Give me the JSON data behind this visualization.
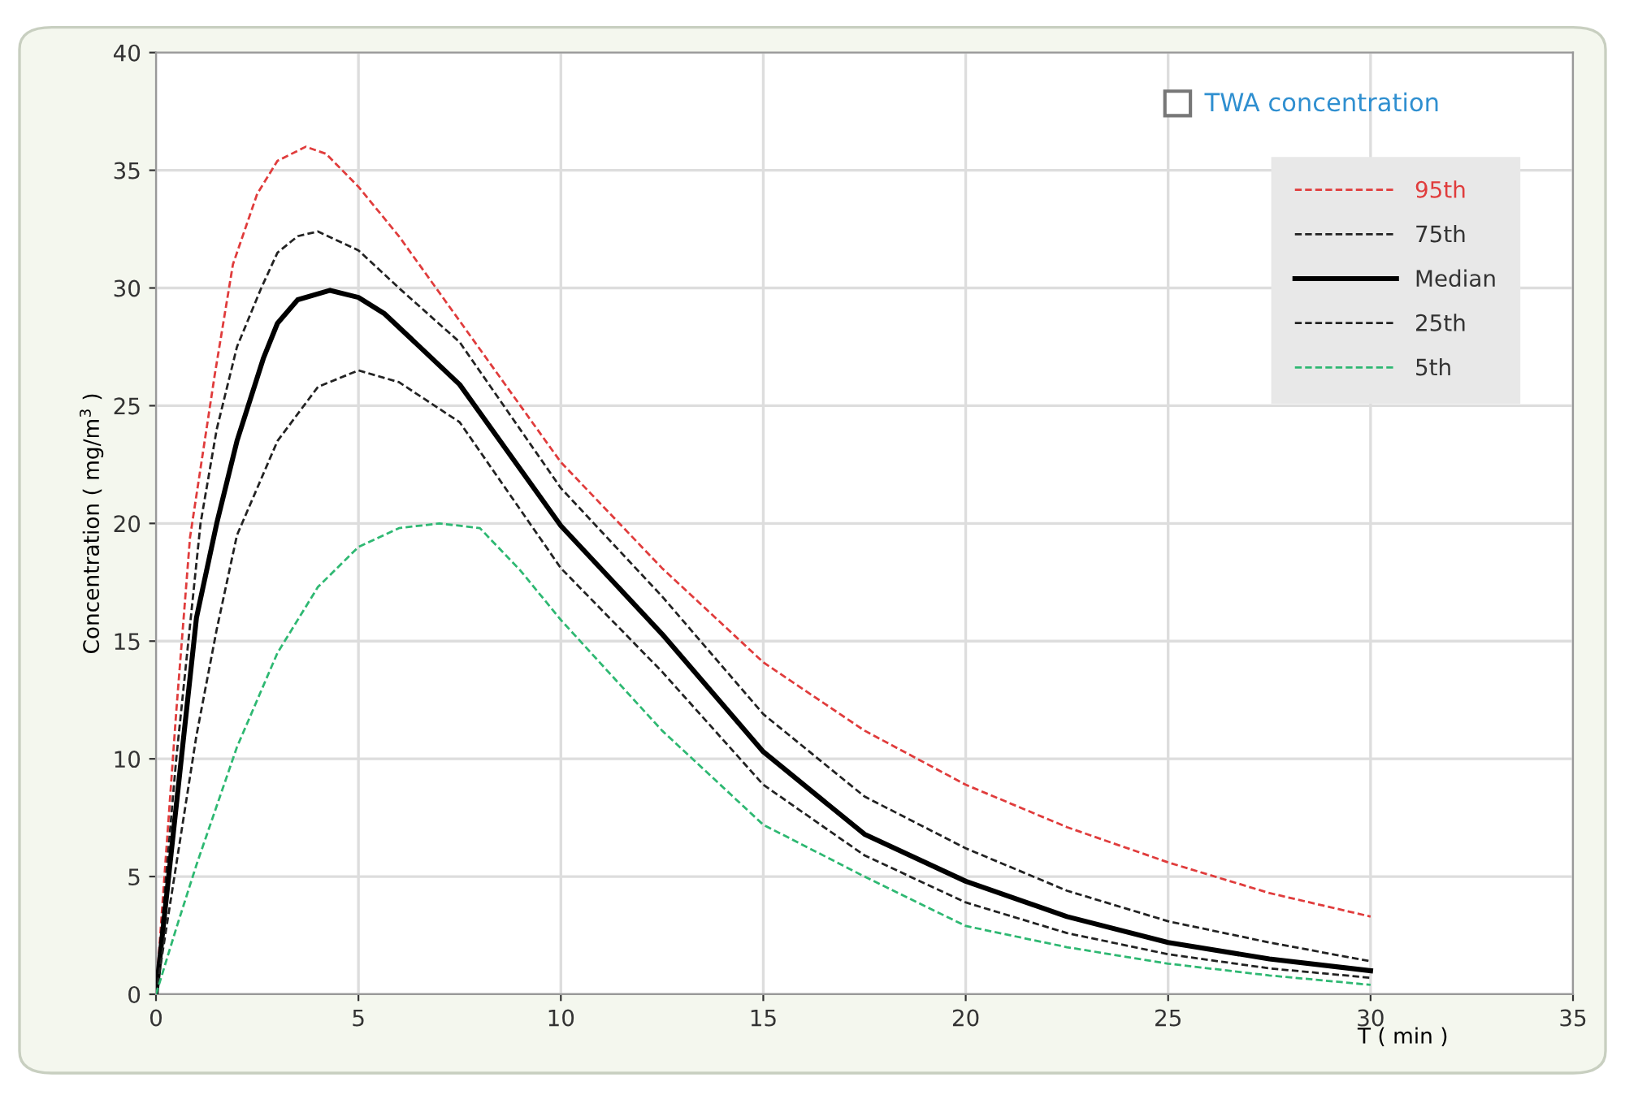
{
  "chart_data": {
    "type": "line",
    "xlabel": "T ( min )",
    "ylabel": "Concentration ( mg/m$^{3}$ )",
    "annotations": [
      "TWA concentration"
    ],
    "xlim": [
      0,
      35
    ],
    "xticks": [
      0,
      5,
      10,
      15,
      20,
      25,
      30,
      35
    ],
    "ylim": [
      0,
      40
    ],
    "yticks": [
      0,
      5,
      10,
      15,
      20,
      25,
      30,
      35,
      40
    ],
    "grid": true,
    "legend": "top right",
    "marker": "none",
    "series": [
      {
        "name": "95th",
        "color": "#e03c3c",
        "line_style": "dashed",
        "x": [
          0,
          0.5,
          0.84,
          1.45,
          1.9,
          2.5,
          3,
          3.7,
          4.2,
          5,
          6,
          7.5,
          10,
          12.5,
          15,
          17.5,
          20,
          22.5,
          25,
          27.5,
          30
        ],
        "values": [
          0,
          12,
          19.4,
          26.3,
          31,
          34,
          35.4,
          36,
          35.7,
          34.3,
          32.2,
          28.6,
          22.6,
          18.1,
          14.1,
          11.2,
          8.9,
          7.1,
          5.6,
          4.3,
          3.3
        ]
      },
      {
        "name": "75th",
        "color": "#222222",
        "line_style": "dashed",
        "x": [
          0,
          0.5,
          1.1,
          1.5,
          2,
          2.6,
          3,
          3.5,
          4,
          5,
          6,
          7.5,
          10,
          12.5,
          15,
          17.5,
          20,
          22.5,
          25,
          27.5,
          30
        ],
        "values": [
          0,
          10,
          20,
          24,
          27.5,
          30,
          31.5,
          32.2,
          32.4,
          31.6,
          30,
          27.7,
          21.5,
          16.9,
          11.9,
          8.4,
          6.2,
          4.4,
          3.1,
          2.2,
          1.4
        ]
      },
      {
        "name": "Median",
        "color": "#000000",
        "line_style": "solid",
        "x": [
          0,
          0.5,
          1,
          1.5,
          2,
          2.65,
          3,
          3.5,
          4.3,
          5,
          5.65,
          7.5,
          10,
          12.5,
          15,
          17.5,
          20,
          22.5,
          25,
          27.5,
          30
        ],
        "values": [
          0,
          8,
          16,
          20,
          23.5,
          27,
          28.5,
          29.5,
          29.9,
          29.6,
          28.9,
          25.9,
          19.9,
          15.3,
          10.3,
          6.8,
          4.8,
          3.3,
          2.2,
          1.5,
          1.0
        ]
      },
      {
        "name": "25th",
        "color": "#222222",
        "line_style": "dashed",
        "x": [
          0,
          0.5,
          1,
          1.5,
          2,
          3,
          4,
          5,
          6,
          7.5,
          10,
          12.5,
          15,
          17.5,
          20,
          22.5,
          25,
          27.5,
          30
        ],
        "values": [
          0,
          5.5,
          11,
          15.5,
          19.5,
          23.5,
          25.8,
          26.5,
          26,
          24.3,
          18.1,
          13.7,
          8.9,
          5.9,
          3.9,
          2.6,
          1.7,
          1.1,
          0.7
        ]
      },
      {
        "name": "5th",
        "color": "#2eb872",
        "line_style": "dashed",
        "x": [
          0,
          0.5,
          1,
          2,
          3,
          4,
          5,
          6,
          7,
          8,
          9,
          10,
          12.5,
          15,
          17.5,
          20,
          22.5,
          25,
          27.5,
          30
        ],
        "values": [
          0,
          2.8,
          5.5,
          10.5,
          14.5,
          17.3,
          19,
          19.8,
          20,
          19.8,
          18,
          15.9,
          11.2,
          7.2,
          5.0,
          2.9,
          2.0,
          1.3,
          0.8,
          0.4
        ]
      }
    ]
  }
}
